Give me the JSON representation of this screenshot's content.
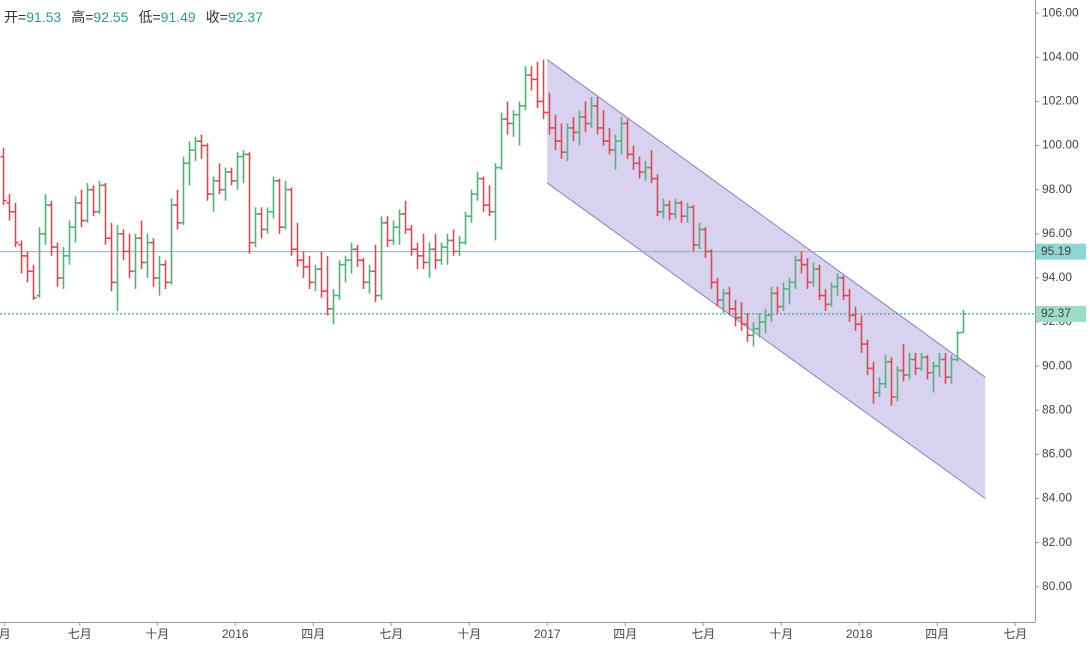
{
  "chart_data": {
    "type": "ohlc",
    "header": [
      {
        "label": "开=",
        "value": 91.53
      },
      {
        "label": "高=",
        "value": 92.55
      },
      {
        "label": "低=",
        "value": 91.49
      },
      {
        "label": "收=",
        "value": 92.37
      }
    ],
    "up_color": "#4fb37f",
    "down_color": "#f03e56",
    "ylim": [
      78.4,
      106.6
    ],
    "yticks": [
      {
        "value": 80,
        "label": "80.00"
      },
      {
        "value": 82,
        "label": "82.00"
      },
      {
        "value": 84,
        "label": "84.00"
      },
      {
        "value": 86,
        "label": "86.00"
      },
      {
        "value": 88,
        "label": "88.00"
      },
      {
        "value": 90,
        "label": "90.00"
      },
      {
        "value": 92,
        "label": "92.00"
      },
      {
        "value": 94,
        "label": "94.00"
      },
      {
        "value": 96,
        "label": "96.00"
      },
      {
        "value": 98,
        "label": "98.00"
      },
      {
        "value": 100,
        "label": "100.00"
      },
      {
        "value": 102,
        "label": "102.00"
      },
      {
        "value": 104,
        "label": "104.00"
      },
      {
        "value": 106,
        "label": "106.00"
      }
    ],
    "xlim": [
      -0.5,
      172
    ],
    "xticks": [
      {
        "value": 0.3,
        "label": "月"
      },
      {
        "value": 12.8,
        "label": "七月"
      },
      {
        "value": 25.7,
        "label": "十月"
      },
      {
        "value": 38.7,
        "label": "2016"
      },
      {
        "value": 51.7,
        "label": "四月"
      },
      {
        "value": 64.7,
        "label": "七月"
      },
      {
        "value": 77.7,
        "label": "十月"
      },
      {
        "value": 90.7,
        "label": "2017"
      },
      {
        "value": 103.7,
        "label": "四月"
      },
      {
        "value": 116.7,
        "label": "七月"
      },
      {
        "value": 129.7,
        "label": "十月"
      },
      {
        "value": 142.7,
        "label": "2018"
      },
      {
        "value": 155.7,
        "label": "四月"
      },
      {
        "value": 168.7,
        "label": "七月"
      }
    ],
    "channel": {
      "color": "#8c7fc4",
      "fill": "#d8d2ee",
      "upper": [
        [
          90.7,
          103.9
        ],
        [
          163.7,
          89.5
        ]
      ],
      "lower": [
        [
          90.7,
          98.3
        ],
        [
          163.7,
          84.0
        ]
      ]
    },
    "hlines": [
      {
        "value": 95.19,
        "style": "solid",
        "color": "#62c6c2"
      },
      {
        "value": 92.37,
        "style": "dotted",
        "color": "#2e8f6a"
      }
    ],
    "ohlc": [
      [
        99.5,
        99.9,
        97.3,
        97.5
      ],
      [
        97.4,
        97.8,
        96.6,
        97.0
      ],
      [
        97.0,
        97.4,
        95.4,
        95.6
      ],
      [
        95.5,
        95.7,
        94.2,
        95.0
      ],
      [
        95.0,
        95.2,
        93.8,
        94.3
      ],
      [
        94.3,
        94.6,
        93.0,
        93.1
      ],
      [
        93.2,
        96.3,
        93.1,
        96.0
      ],
      [
        96.0,
        97.8,
        95.5,
        97.3
      ],
      [
        97.3,
        97.5,
        95.0,
        95.4
      ],
      [
        95.4,
        95.6,
        93.6,
        94.0
      ],
      [
        94.0,
        95.4,
        93.5,
        95.0
      ],
      [
        95.0,
        96.6,
        94.6,
        96.3
      ],
      [
        96.3,
        97.7,
        95.6,
        97.4
      ],
      [
        97.4,
        98.0,
        96.3,
        96.6
      ],
      [
        96.6,
        98.3,
        96.5,
        98.0
      ],
      [
        98.0,
        98.2,
        96.8,
        97.0
      ],
      [
        97.0,
        98.4,
        96.9,
        98.2
      ],
      [
        98.2,
        98.3,
        95.5,
        95.8
      ],
      [
        95.8,
        96.5,
        93.4,
        93.8
      ],
      [
        93.8,
        96.4,
        92.5,
        96.0
      ],
      [
        96.0,
        96.2,
        94.8,
        95.2
      ],
      [
        95.2,
        96.0,
        94.0,
        94.3
      ],
      [
        94.3,
        96.0,
        93.5,
        95.8
      ],
      [
        95.8,
        96.6,
        94.4,
        94.7
      ],
      [
        94.7,
        96.0,
        94.0,
        95.6
      ],
      [
        95.6,
        95.8,
        93.6,
        94.0
      ],
      [
        94.0,
        95.0,
        93.2,
        94.6
      ],
      [
        94.6,
        94.8,
        93.5,
        93.8
      ],
      [
        93.8,
        97.6,
        93.7,
        97.3
      ],
      [
        97.3,
        98.0,
        96.2,
        96.5
      ],
      [
        96.5,
        99.5,
        96.4,
        99.2
      ],
      [
        99.2,
        100.2,
        98.2,
        99.8
      ],
      [
        99.8,
        100.4,
        99.3,
        100.2
      ],
      [
        100.2,
        100.5,
        99.4,
        100.0
      ],
      [
        100.0,
        100.1,
        97.5,
        97.8
      ],
      [
        97.8,
        98.6,
        97.0,
        98.4
      ],
      [
        98.4,
        99.2,
        97.8,
        98.0
      ],
      [
        98.0,
        99.0,
        97.5,
        98.8
      ],
      [
        98.8,
        99.0,
        98.2,
        98.4
      ],
      [
        98.4,
        99.7,
        98.0,
        99.5
      ],
      [
        99.5,
        99.8,
        98.3,
        99.6
      ],
      [
        99.6,
        99.7,
        95.1,
        95.6
      ],
      [
        95.6,
        97.2,
        95.4,
        96.9
      ],
      [
        96.9,
        97.2,
        95.8,
        96.2
      ],
      [
        96.2,
        97.2,
        96.0,
        97.0
      ],
      [
        97.0,
        98.6,
        96.7,
        98.4
      ],
      [
        98.4,
        98.5,
        96.0,
        96.3
      ],
      [
        96.3,
        98.4,
        96.2,
        98.0
      ],
      [
        98.0,
        98.1,
        95.0,
        95.3
      ],
      [
        95.3,
        96.5,
        94.5,
        94.8
      ],
      [
        94.8,
        95.2,
        94.0,
        94.5
      ],
      [
        94.5,
        95.0,
        93.5,
        93.8
      ],
      [
        93.8,
        94.6,
        93.4,
        94.4
      ],
      [
        94.4,
        95.2,
        93.1,
        93.4
      ],
      [
        93.4,
        95.0,
        92.3,
        92.6
      ],
      [
        92.6,
        93.5,
        91.9,
        93.2
      ],
      [
        93.2,
        94.8,
        93.0,
        94.6
      ],
      [
        94.6,
        95.0,
        93.8,
        94.8
      ],
      [
        94.8,
        95.6,
        94.2,
        95.3
      ],
      [
        95.3,
        95.5,
        94.5,
        94.8
      ],
      [
        94.8,
        94.9,
        93.5,
        93.8
      ],
      [
        93.8,
        94.6,
        93.3,
        94.3
      ],
      [
        94.3,
        95.5,
        92.9,
        93.2
      ],
      [
        93.2,
        96.8,
        93.0,
        96.5
      ],
      [
        96.5,
        96.8,
        95.4,
        95.7
      ],
      [
        95.7,
        96.6,
        95.5,
        96.3
      ],
      [
        96.3,
        97.1,
        95.5,
        96.9
      ],
      [
        96.9,
        97.5,
        96.0,
        96.2
      ],
      [
        96.2,
        96.4,
        95.0,
        95.3
      ],
      [
        95.3,
        95.6,
        94.4,
        95.0
      ],
      [
        95.0,
        96.0,
        94.4,
        94.7
      ],
      [
        94.7,
        95.6,
        94.0,
        95.3
      ],
      [
        95.3,
        96.0,
        94.4,
        94.8
      ],
      [
        94.8,
        95.6,
        94.6,
        95.4
      ],
      [
        95.4,
        96.0,
        94.6,
        95.7
      ],
      [
        95.7,
        96.2,
        95.0,
        95.2
      ],
      [
        95.2,
        95.9,
        95.0,
        95.6
      ],
      [
        95.6,
        97.0,
        95.5,
        96.8
      ],
      [
        96.8,
        98.0,
        96.5,
        97.8
      ],
      [
        97.8,
        98.8,
        97.5,
        98.5
      ],
      [
        98.5,
        98.6,
        97.0,
        97.3
      ],
      [
        97.3,
        98.2,
        96.8,
        97.0
      ],
      [
        97.0,
        99.2,
        95.7,
        99.0
      ],
      [
        99.0,
        101.5,
        98.9,
        101.2
      ],
      [
        101.2,
        102.0,
        100.5,
        101.0
      ],
      [
        101.0,
        101.6,
        100.4,
        101.4
      ],
      [
        101.4,
        102.0,
        100.0,
        101.8
      ],
      [
        101.8,
        103.6,
        101.6,
        103.2
      ],
      [
        103.2,
        103.6,
        102.5,
        103.0
      ],
      [
        103.0,
        103.8,
        101.7,
        102.0
      ],
      [
        102.0,
        103.9,
        101.2,
        101.5
      ],
      [
        101.5,
        102.4,
        100.5,
        100.8
      ],
      [
        100.8,
        101.4,
        99.8,
        100.2
      ],
      [
        100.2,
        101.0,
        99.4,
        99.7
      ],
      [
        99.7,
        101.0,
        99.3,
        100.8
      ],
      [
        100.8,
        101.3,
        100.2,
        100.6
      ],
      [
        100.6,
        101.6,
        100.0,
        101.3
      ],
      [
        101.3,
        102.0,
        100.6,
        101.0
      ],
      [
        101.0,
        102.2,
        100.8,
        101.8
      ],
      [
        101.8,
        102.2,
        100.5,
        100.8
      ],
      [
        100.8,
        101.6,
        100.0,
        100.2
      ],
      [
        100.2,
        100.8,
        99.6,
        99.8
      ],
      [
        99.8,
        100.5,
        98.9,
        100.2
      ],
      [
        100.2,
        101.3,
        99.6,
        101.0
      ],
      [
        101.0,
        101.2,
        99.4,
        99.6
      ],
      [
        99.6,
        100.0,
        98.9,
        99.2
      ],
      [
        99.2,
        99.5,
        98.5,
        98.8
      ],
      [
        98.8,
        99.3,
        98.4,
        99.0
      ],
      [
        99.0,
        99.8,
        98.3,
        98.5
      ],
      [
        98.5,
        98.7,
        96.8,
        97.0
      ],
      [
        97.0,
        97.6,
        96.7,
        97.3
      ],
      [
        97.3,
        97.5,
        96.6,
        96.9
      ],
      [
        96.9,
        97.6,
        96.7,
        97.4
      ],
      [
        97.4,
        97.5,
        96.5,
        96.8
      ],
      [
        96.8,
        97.4,
        96.5,
        97.2
      ],
      [
        97.2,
        97.3,
        95.2,
        95.5
      ],
      [
        95.5,
        96.5,
        95.3,
        96.2
      ],
      [
        96.2,
        96.3,
        94.9,
        95.2
      ],
      [
        95.2,
        95.3,
        93.5,
        93.8
      ],
      [
        93.8,
        94.0,
        92.7,
        93.0
      ],
      [
        93.0,
        93.5,
        92.4,
        93.3
      ],
      [
        93.3,
        93.6,
        92.3,
        92.6
      ],
      [
        92.6,
        93.0,
        91.8,
        92.2
      ],
      [
        92.2,
        92.9,
        91.6,
        91.9
      ],
      [
        91.9,
        92.4,
        91.1,
        91.4
      ],
      [
        91.4,
        92.0,
        90.9,
        91.7
      ],
      [
        91.7,
        92.4,
        91.3,
        92.0
      ],
      [
        92.0,
        92.6,
        91.5,
        92.3
      ],
      [
        92.3,
        93.6,
        92.0,
        93.3
      ],
      [
        93.3,
        93.6,
        92.4,
        92.7
      ],
      [
        92.7,
        93.8,
        92.5,
        93.5
      ],
      [
        93.5,
        94.0,
        92.8,
        93.8
      ],
      [
        93.8,
        95.0,
        93.5,
        94.8
      ],
      [
        94.8,
        95.2,
        94.2,
        94.6
      ],
      [
        94.6,
        94.9,
        93.5,
        93.8
      ],
      [
        93.8,
        94.7,
        93.6,
        94.4
      ],
      [
        94.4,
        94.6,
        93.0,
        93.2
      ],
      [
        93.2,
        93.5,
        92.5,
        92.8
      ],
      [
        92.8,
        93.8,
        92.7,
        93.6
      ],
      [
        93.6,
        94.2,
        93.2,
        94.0
      ],
      [
        94.0,
        94.1,
        93.0,
        93.2
      ],
      [
        93.2,
        93.5,
        92.0,
        92.3
      ],
      [
        92.3,
        92.7,
        91.6,
        91.9
      ],
      [
        91.9,
        92.3,
        90.6,
        91.0
      ],
      [
        91.0,
        91.2,
        89.6,
        89.9
      ],
      [
        89.9,
        90.2,
        88.3,
        88.8
      ],
      [
        88.8,
        89.5,
        88.6,
        89.2
      ],
      [
        89.2,
        90.5,
        89.0,
        90.2
      ],
      [
        90.2,
        90.4,
        88.2,
        88.6
      ],
      [
        88.6,
        90.0,
        88.4,
        89.8
      ],
      [
        89.8,
        91.0,
        89.3,
        89.6
      ],
      [
        89.6,
        90.6,
        89.4,
        90.3
      ],
      [
        90.3,
        90.6,
        89.6,
        89.9
      ],
      [
        89.9,
        90.6,
        89.8,
        90.4
      ],
      [
        90.4,
        90.5,
        89.4,
        89.7
      ],
      [
        89.7,
        90.2,
        88.8,
        90.0
      ],
      [
        90.0,
        90.6,
        89.5,
        90.3
      ],
      [
        90.3,
        90.6,
        89.2,
        89.5
      ],
      [
        89.5,
        90.5,
        89.2,
        90.3
      ],
      [
        90.3,
        91.6,
        90.2,
        91.5
      ],
      [
        91.53,
        92.55,
        91.49,
        92.37
      ]
    ]
  }
}
